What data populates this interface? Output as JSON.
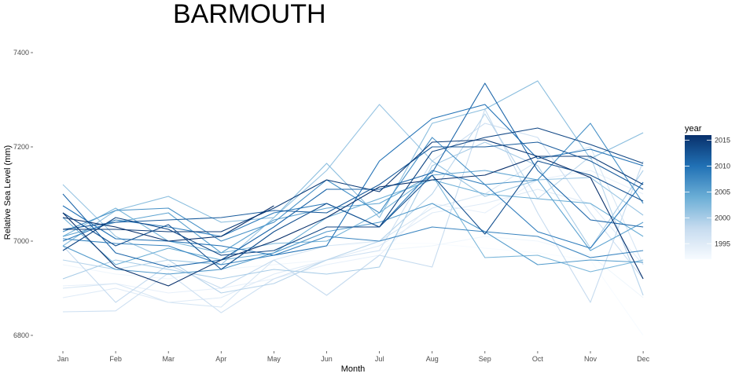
{
  "chart_data": {
    "type": "line",
    "title": "BARMOUTH",
    "xlabel": "Month",
    "ylabel": "Relative Sea Level (mm)",
    "categories": [
      "Jan",
      "Feb",
      "Mar",
      "Apr",
      "May",
      "Jun",
      "Jul",
      "Aug",
      "Sep",
      "Oct",
      "Nov",
      "Dec"
    ],
    "ylim": [
      6780,
      7430
    ],
    "yticks": [
      6800,
      7000,
      7200,
      7400
    ],
    "grid": false,
    "legend": {
      "title": "year",
      "position": "right",
      "type": "colorbar",
      "range": [
        1992,
        2016
      ],
      "ticks": [
        1995,
        2000,
        2005,
        2010,
        2015
      ],
      "low_color": "#f7fbff",
      "high_color": "#08306b"
    },
    "series": [
      {
        "year": 1992,
        "values": [
          7010,
          6980,
          6995,
          6970,
          6985,
          6990,
          6995,
          6995,
          6985,
          6975,
          6960,
          6800
        ]
      },
      {
        "year": 1993,
        "values": [
          6950,
          6930,
          6920,
          6940,
          6950,
          6960,
          6980,
          6990,
          7010,
          7000,
          6970,
          6880
        ]
      },
      {
        "year": 1994,
        "values": [
          6905,
          6910,
          6890,
          6900,
          6920,
          6950,
          6970,
          7080,
          7060,
          7130,
          7150,
          7100
        ]
      },
      {
        "year": 1995,
        "values": [
          6880,
          6900,
          6870,
          6880,
          6930,
          6960,
          6990,
          7060,
          7080,
          7110,
          7080,
          6950
        ]
      },
      {
        "year": 1996,
        "values": [
          6900,
          6910,
          6870,
          6860,
          6960,
          6990,
          7000,
          7070,
          7100,
          7170,
          7200,
          6950
        ]
      },
      {
        "year": 1997,
        "values": [
          6850,
          6852,
          6932,
          6848,
          6920,
          6960,
          6980,
          7170,
          7250,
          7220,
          7060,
          6920
        ]
      },
      {
        "year": 1998,
        "values": [
          6990,
          6870,
          6950,
          6900,
          6960,
          6885,
          6970,
          6945,
          7280,
          7060,
          6870,
          7170
        ]
      },
      {
        "year": 1999,
        "values": [
          6960,
          6940,
          6960,
          6890,
          6910,
          6960,
          7000,
          7100,
          7270,
          7090,
          7180,
          6885
        ]
      },
      {
        "year": 2000,
        "values": [
          6920,
          6960,
          6940,
          6920,
          6940,
          6930,
          6945,
          7160,
          7210,
          7160,
          6985,
          7150
        ]
      },
      {
        "year": 2001,
        "values": [
          7120,
          7010,
          6960,
          6950,
          7050,
          7150,
          7290,
          7170,
          7095,
          7130,
          7135,
          7055
        ]
      },
      {
        "year": 2002,
        "values": [
          6990,
          7065,
          7095,
          7040,
          7050,
          7165,
          7050,
          7250,
          7280,
          7340,
          7175,
          7230
        ]
      },
      {
        "year": 2003,
        "values": [
          7010,
          7070,
          7000,
          6975,
          6995,
          7000,
          7060,
          7140,
          6965,
          6970,
          6935,
          6960
        ]
      },
      {
        "year": 2004,
        "values": [
          7050,
          6950,
          6985,
          6960,
          6975,
          7050,
          7090,
          7130,
          7100,
          7090,
          7080,
          7010
        ]
      },
      {
        "year": 2005,
        "values": [
          7010,
          7040,
          7060,
          6975,
          7045,
          7070,
          7080,
          7140,
          7150,
          7130,
          6980,
          7040
        ]
      },
      {
        "year": 2006,
        "values": [
          6990,
          6940,
          6930,
          6940,
          6975,
          7020,
          7040,
          7080,
          7020,
          6950,
          6960,
          6955
        ]
      },
      {
        "year": 2007,
        "values": [
          7020,
          7065,
          7070,
          7000,
          7040,
          7130,
          7060,
          7220,
          7120,
          7130,
          7250,
          7080
        ]
      },
      {
        "year": 2008,
        "values": [
          7005,
          6995,
          6990,
          6950,
          6970,
          7010,
          7000,
          7030,
          7020,
          7010,
          6965,
          6980
        ]
      },
      {
        "year": 2009,
        "values": [
          7000,
          7045,
          7030,
          7010,
          7060,
          7080,
          7030,
          7150,
          7120,
          7020,
          6985,
          7125
        ]
      },
      {
        "year": 2010,
        "values": [
          7075,
          7005,
          7000,
          6990,
          6970,
          6990,
          7170,
          7260,
          7290,
          7175,
          7195,
          7160
        ]
      },
      {
        "year": 2011,
        "values": [
          7100,
          6975,
          6945,
          6960,
          7030,
          7110,
          7110,
          7145,
          7335,
          7150,
          7045,
          7030
        ]
      },
      {
        "year": 2012,
        "values": [
          7025,
          7040,
          7045,
          7050,
          7065,
          7060,
          7120,
          7200,
          7200,
          7210,
          7170,
          7110
        ]
      },
      {
        "year": 2013,
        "values": [
          7060,
          6990,
          7035,
          6940,
          7020,
          7080,
          7030,
          7140,
          7015,
          7170,
          7140,
          7085
        ]
      },
      {
        "year": 2014,
        "values": [
          6980,
          7050,
          7025,
          6970,
          6980,
          7030,
          7030,
          7190,
          7220,
          7240,
          7205,
          7165
        ]
      },
      {
        "year": 2015,
        "values": [
          7025,
          7025,
          7020,
          7020,
          7070,
          7130,
          7105,
          7210,
          7215,
          7180,
          7180,
          7120
        ]
      },
      {
        "year": 2016,
        "values": [
          7060,
          6945,
          6905,
          6960,
          7000,
          7050,
          7115,
          7130,
          7140,
          7180,
          7135,
          6920
        ]
      },
      {
        "year": 2017,
        "values": [
          7050,
          7030,
          7000,
          7010,
          7075,
          null,
          null,
          null,
          null,
          null,
          null,
          null
        ]
      }
    ]
  }
}
